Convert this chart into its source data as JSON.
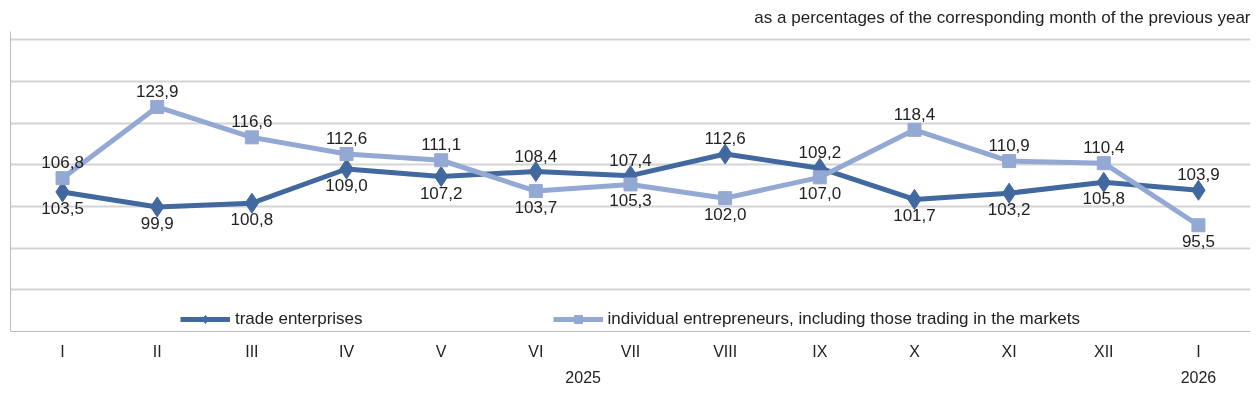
{
  "chart_data": {
    "type": "line",
    "title": "as a percentages of the corresponding month of the previous year",
    "categories": [
      "I",
      "II",
      "III",
      "IV",
      "V",
      "VI",
      "VII",
      "VIII",
      "IX",
      "X",
      "XI",
      "XII",
      "I"
    ],
    "series": [
      {
        "name": "trade enterprises",
        "color": "#41699f",
        "marker": "diamond",
        "values": [
          103.5,
          99.9,
          100.8,
          109.0,
          107.2,
          108.4,
          107.4,
          112.6,
          109.2,
          101.7,
          103.2,
          105.8,
          103.9
        ],
        "value_labels": [
          "103,5",
          "99,9",
          "100,8",
          "109,0",
          "107,2",
          "108,4",
          "107,4",
          "112,6",
          "109,2",
          "101,7",
          "103,2",
          "105,8",
          "103,9"
        ]
      },
      {
        "name": "individual entrepreneurs, including those trading in the markets",
        "color": "#93a9d3",
        "marker": "square",
        "values": [
          106.8,
          123.9,
          116.6,
          112.6,
          111.1,
          103.7,
          105.3,
          102.0,
          107.0,
          118.4,
          110.9,
          110.4,
          95.5
        ],
        "value_labels": [
          "106,8",
          "123,9",
          "116,6",
          "112,6",
          "111,1",
          "103,7",
          "105,3",
          "102,0",
          "107,0",
          "118,4",
          "110,9",
          "110,4",
          "95,5"
        ]
      }
    ],
    "ylim": [
      70,
      142
    ],
    "yticks": [
      {
        "value": 70,
        "label": null
      },
      {
        "value": 80,
        "label": null
      },
      {
        "value": 90,
        "label": null
      },
      {
        "value": 100,
        "label": null
      },
      {
        "value": 110,
        "label": null
      },
      {
        "value": 120,
        "label": null
      },
      {
        "value": 130,
        "label": null
      },
      {
        "value": 140,
        "label": null
      }
    ],
    "tick_labels": "x",
    "grid": "y",
    "legend": "bottom",
    "line_style": "solid",
    "annotations": [
      "2025",
      "2026"
    ]
  }
}
